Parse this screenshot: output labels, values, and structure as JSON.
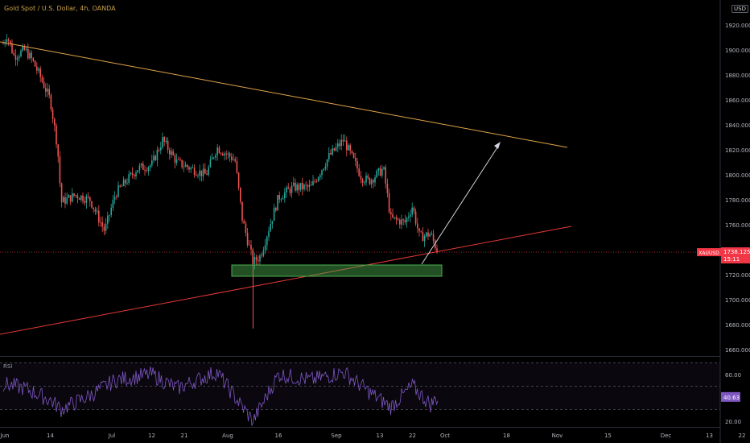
{
  "header": {
    "symbol_title": "Gold Spot / U.S. Dollar, 4h, OANDA",
    "currency": "USD"
  },
  "price_tag": {
    "symbol": "XAUUSD",
    "price": "1738.125",
    "countdown": "15:11",
    "color": "#f23645"
  },
  "rsi": {
    "label": "RSI",
    "value": "40.63",
    "levels": [
      "60.00",
      "20.00"
    ],
    "color": "#7e57c2"
  },
  "colors": {
    "up_candle": "#26a69a",
    "down_candle": "#ef5350",
    "resistance_line": "#e0a44a",
    "support_line": "#e53935",
    "zone": "#4caf50",
    "arrow": "#d1d4dc"
  },
  "chart_data": [
    {
      "type": "candlestick",
      "title": "",
      "x_ticks": [
        "Jun",
        "14",
        "Jul",
        "12",
        "21",
        "Aug",
        "16",
        "Sep",
        "13",
        "22",
        "Oct",
        "18",
        "Nov",
        "15",
        "Dec",
        "13",
        "22"
      ],
      "y_ticks": [
        "1920.000",
        "1900.000",
        "1880.000",
        "1860.000",
        "1840.000",
        "1820.000",
        "1800.000",
        "1780.000",
        "1760.000",
        "1720.000",
        "1700.000",
        "1680.000",
        "1660.000"
      ],
      "ylim": [
        1655,
        1940
      ],
      "price_path": [
        {
          "date": "2021-06-01",
          "price": 1905
        },
        {
          "date": "2021-06-02",
          "price": 1912
        },
        {
          "date": "2021-06-04",
          "price": 1895
        },
        {
          "date": "2021-06-07",
          "price": 1900
        },
        {
          "date": "2021-06-09",
          "price": 1892
        },
        {
          "date": "2021-06-11",
          "price": 1880
        },
        {
          "date": "2021-06-14",
          "price": 1860
        },
        {
          "date": "2021-06-16",
          "price": 1822
        },
        {
          "date": "2021-06-17",
          "price": 1778
        },
        {
          "date": "2021-06-21",
          "price": 1784
        },
        {
          "date": "2021-06-25",
          "price": 1780
        },
        {
          "date": "2021-06-29",
          "price": 1755
        },
        {
          "date": "2021-07-02",
          "price": 1785
        },
        {
          "date": "2021-07-08",
          "price": 1805
        },
        {
          "date": "2021-07-12",
          "price": 1808
        },
        {
          "date": "2021-07-15",
          "price": 1828
        },
        {
          "date": "2021-07-19",
          "price": 1810
        },
        {
          "date": "2021-07-23",
          "price": 1805
        },
        {
          "date": "2021-07-27",
          "price": 1800
        },
        {
          "date": "2021-07-30",
          "price": 1822
        },
        {
          "date": "2021-08-04",
          "price": 1812
        },
        {
          "date": "2021-08-06",
          "price": 1765
        },
        {
          "date": "2021-08-09",
          "price": 1730
        },
        {
          "date": "2021-08-11",
          "price": 1735
        },
        {
          "date": "2021-08-16",
          "price": 1782
        },
        {
          "date": "2021-08-20",
          "price": 1790
        },
        {
          "date": "2021-08-25",
          "price": 1790
        },
        {
          "date": "2021-08-30",
          "price": 1815
        },
        {
          "date": "2021-09-03",
          "price": 1828
        },
        {
          "date": "2021-09-08",
          "price": 1798
        },
        {
          "date": "2021-09-10",
          "price": 1795
        },
        {
          "date": "2021-09-14",
          "price": 1805
        },
        {
          "date": "2021-09-16",
          "price": 1765
        },
        {
          "date": "2021-09-20",
          "price": 1762
        },
        {
          "date": "2021-09-22",
          "price": 1775
        },
        {
          "date": "2021-09-24",
          "price": 1750
        },
        {
          "date": "2021-09-27",
          "price": 1753
        },
        {
          "date": "2021-09-29",
          "price": 1738
        }
      ],
      "wick_low": {
        "date": "2021-08-09",
        "price": 1677
      }
    },
    {
      "type": "line",
      "title": "RSI",
      "ylim": [
        15,
        75
      ],
      "levels": [
        70,
        30
      ],
      "value_path": [
        {
          "date": "2021-06-01",
          "y": 52
        },
        {
          "date": "2021-06-07",
          "y": 48
        },
        {
          "date": "2021-06-14",
          "y": 38
        },
        {
          "date": "2021-06-17",
          "y": 30
        },
        {
          "date": "2021-06-25",
          "y": 42
        },
        {
          "date": "2021-07-02",
          "y": 55
        },
        {
          "date": "2021-07-12",
          "y": 60
        },
        {
          "date": "2021-07-19",
          "y": 48
        },
        {
          "date": "2021-07-30",
          "y": 62
        },
        {
          "date": "2021-08-06",
          "y": 32
        },
        {
          "date": "2021-08-09",
          "y": 20
        },
        {
          "date": "2021-08-16",
          "y": 60
        },
        {
          "date": "2021-08-25",
          "y": 55
        },
        {
          "date": "2021-09-03",
          "y": 62
        },
        {
          "date": "2021-09-10",
          "y": 45
        },
        {
          "date": "2021-09-16",
          "y": 32
        },
        {
          "date": "2021-09-22",
          "y": 50
        },
        {
          "date": "2021-09-27",
          "y": 34
        },
        {
          "date": "2021-09-29",
          "y": 40.63
        }
      ]
    }
  ]
}
